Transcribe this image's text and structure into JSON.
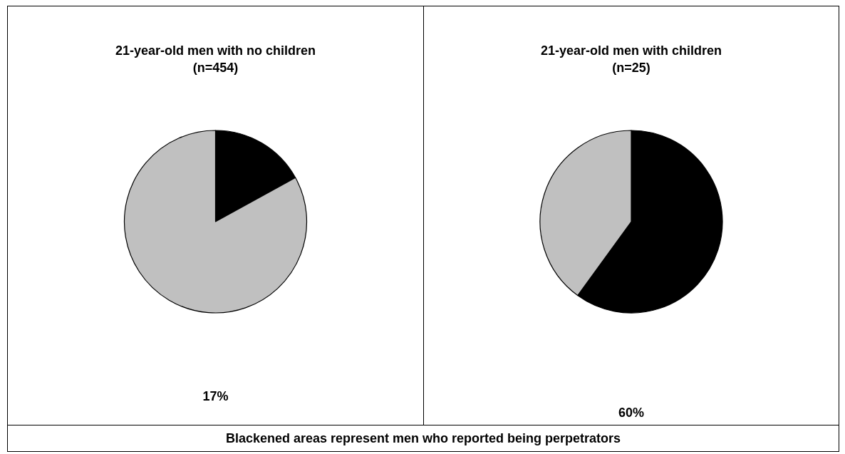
{
  "chart_data": [
    {
      "type": "pie",
      "title": "21-year-old men with no children\n(n=454)",
      "categories": [
        null,
        null
      ],
      "values": [
        17,
        83
      ],
      "colors": [
        "#000000",
        "#c0c0c0"
      ],
      "annotations": [
        "17%",
        "Blackened areas represent men who reported being perpetrators"
      ]
    },
    {
      "type": "pie",
      "title": "21-year-old men with children\n(n=25)",
      "categories": [
        null,
        null
      ],
      "values": [
        60,
        40
      ],
      "colors": [
        "#000000",
        "#c0c0c0"
      ],
      "annotations": [
        "60%"
      ]
    }
  ]
}
